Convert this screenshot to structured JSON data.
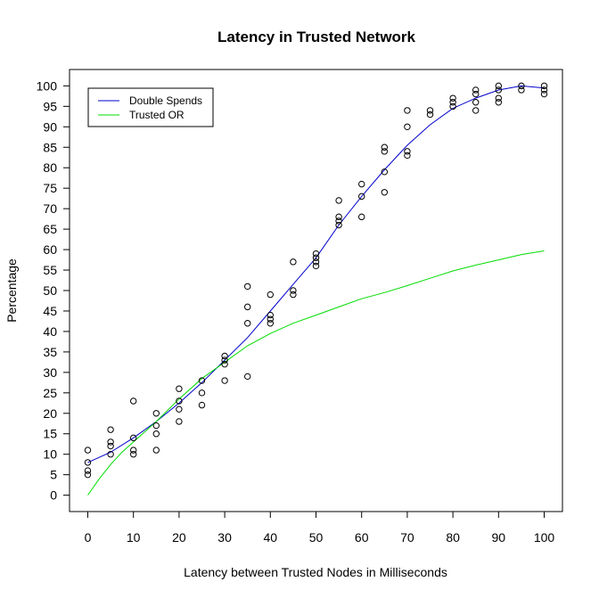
{
  "chart_data": {
    "type": "scatter",
    "title": "Latency in Trusted Network",
    "xlabel": "Latency between Trusted Nodes in Milliseconds",
    "ylabel": "Percentage",
    "xlim": [
      -4,
      104
    ],
    "ylim": [
      -4,
      104
    ],
    "xticks": [
      0,
      10,
      20,
      30,
      40,
      50,
      60,
      70,
      80,
      90,
      100
    ],
    "yticks": [
      0,
      5,
      10,
      15,
      20,
      25,
      30,
      35,
      40,
      45,
      50,
      55,
      60,
      65,
      70,
      75,
      80,
      85,
      90,
      95,
      100
    ],
    "grid": false,
    "legend_position": "top-left",
    "points": [
      {
        "x": 0,
        "y": 11
      },
      {
        "x": 0,
        "y": 8
      },
      {
        "x": 0,
        "y": 6
      },
      {
        "x": 0,
        "y": 5
      },
      {
        "x": 5,
        "y": 16
      },
      {
        "x": 5,
        "y": 13
      },
      {
        "x": 5,
        "y": 12
      },
      {
        "x": 5,
        "y": 10
      },
      {
        "x": 10,
        "y": 23
      },
      {
        "x": 10,
        "y": 14
      },
      {
        "x": 10,
        "y": 11
      },
      {
        "x": 10,
        "y": 10
      },
      {
        "x": 15,
        "y": 20
      },
      {
        "x": 15,
        "y": 17
      },
      {
        "x": 15,
        "y": 15
      },
      {
        "x": 15,
        "y": 11
      },
      {
        "x": 20,
        "y": 26
      },
      {
        "x": 20,
        "y": 23
      },
      {
        "x": 20,
        "y": 21
      },
      {
        "x": 20,
        "y": 18
      },
      {
        "x": 25,
        "y": 28
      },
      {
        "x": 25,
        "y": 25
      },
      {
        "x": 25,
        "y": 22
      },
      {
        "x": 30,
        "y": 34
      },
      {
        "x": 30,
        "y": 33
      },
      {
        "x": 30,
        "y": 32
      },
      {
        "x": 30,
        "y": 28
      },
      {
        "x": 35,
        "y": 51
      },
      {
        "x": 35,
        "y": 46
      },
      {
        "x": 35,
        "y": 42
      },
      {
        "x": 35,
        "y": 29
      },
      {
        "x": 40,
        "y": 49
      },
      {
        "x": 40,
        "y": 44
      },
      {
        "x": 40,
        "y": 43
      },
      {
        "x": 40,
        "y": 42
      },
      {
        "x": 45,
        "y": 57
      },
      {
        "x": 45,
        "y": 50
      },
      {
        "x": 45,
        "y": 49
      },
      {
        "x": 50,
        "y": 59
      },
      {
        "x": 50,
        "y": 58
      },
      {
        "x": 50,
        "y": 57
      },
      {
        "x": 50,
        "y": 56
      },
      {
        "x": 55,
        "y": 72
      },
      {
        "x": 55,
        "y": 68
      },
      {
        "x": 55,
        "y": 67
      },
      {
        "x": 55,
        "y": 66
      },
      {
        "x": 60,
        "y": 76
      },
      {
        "x": 60,
        "y": 73
      },
      {
        "x": 60,
        "y": 68
      },
      {
        "x": 65,
        "y": 85
      },
      {
        "x": 65,
        "y": 84
      },
      {
        "x": 65,
        "y": 79
      },
      {
        "x": 65,
        "y": 74
      },
      {
        "x": 70,
        "y": 94
      },
      {
        "x": 70,
        "y": 90
      },
      {
        "x": 70,
        "y": 84
      },
      {
        "x": 70,
        "y": 83
      },
      {
        "x": 75,
        "y": 94
      },
      {
        "x": 75,
        "y": 93
      },
      {
        "x": 80,
        "y": 97
      },
      {
        "x": 80,
        "y": 96
      },
      {
        "x": 80,
        "y": 95
      },
      {
        "x": 85,
        "y": 99
      },
      {
        "x": 85,
        "y": 98
      },
      {
        "x": 85,
        "y": 96
      },
      {
        "x": 85,
        "y": 94
      },
      {
        "x": 90,
        "y": 100
      },
      {
        "x": 90,
        "y": 99
      },
      {
        "x": 90,
        "y": 97
      },
      {
        "x": 90,
        "y": 96
      },
      {
        "x": 95,
        "y": 100
      },
      {
        "x": 95,
        "y": 99
      },
      {
        "x": 100,
        "y": 100
      },
      {
        "x": 100,
        "y": 99
      },
      {
        "x": 100,
        "y": 98
      }
    ],
    "series": [
      {
        "name": "Double Spends",
        "color": "#0000cc",
        "x": [
          0,
          5,
          10,
          15,
          20,
          25,
          30,
          35,
          40,
          45,
          50,
          55,
          60,
          65,
          70,
          75,
          80,
          85,
          90,
          95,
          100
        ],
        "y": [
          8,
          10.5,
          14,
          18,
          22.5,
          27.5,
          33,
          38.5,
          45,
          51.5,
          58,
          66,
          73,
          79.5,
          85.5,
          90.5,
          94.5,
          97,
          99,
          100,
          99.5
        ]
      },
      {
        "name": "Trusted OR",
        "color": "#00dd00",
        "x": [
          0,
          2.5,
          5,
          7.5,
          10,
          15,
          20,
          25,
          30,
          35,
          40,
          45,
          50,
          55,
          60,
          65,
          70,
          75,
          80,
          85,
          90,
          95,
          100
        ],
        "y": [
          0,
          4,
          7.5,
          10.5,
          13,
          18,
          23.5,
          28.5,
          32.5,
          36.5,
          39.5,
          42,
          44,
          46,
          48,
          49.5,
          51.2,
          53,
          54.8,
          56.2,
          57.5,
          58.8,
          59.7
        ]
      }
    ]
  }
}
